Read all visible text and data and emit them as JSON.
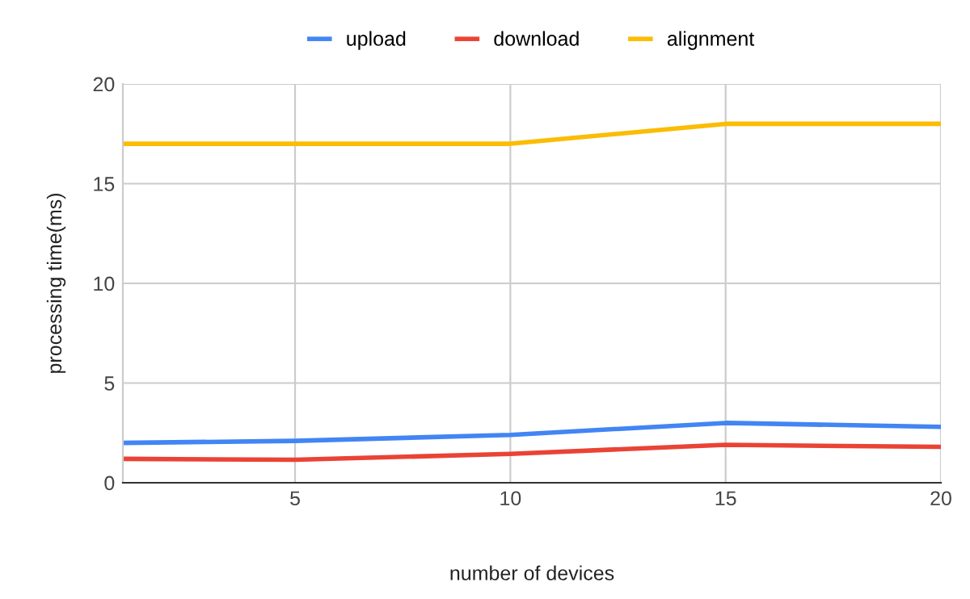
{
  "chart_data": {
    "type": "line",
    "xlabel": "number of devices",
    "ylabel": "processing time(ms)",
    "x": [
      1,
      5,
      10,
      15,
      20
    ],
    "series": [
      {
        "name": "upload",
        "color": "#4285f4",
        "values": [
          2.0,
          2.1,
          2.4,
          3.0,
          2.8
        ]
      },
      {
        "name": "download",
        "color": "#ea4335",
        "values": [
          1.2,
          1.15,
          1.45,
          1.9,
          1.8
        ]
      },
      {
        "name": "alignment",
        "color": "#fbbc04",
        "values": [
          17,
          17,
          17,
          18,
          18
        ]
      }
    ],
    "xlim": [
      1,
      20
    ],
    "xticks": [
      5,
      10,
      15,
      20
    ],
    "ylim": [
      0,
      20
    ],
    "yticks": [
      0,
      5,
      10,
      15,
      20
    ],
    "grid": true,
    "legend": "top",
    "marker": "none",
    "line_style": "solid"
  }
}
